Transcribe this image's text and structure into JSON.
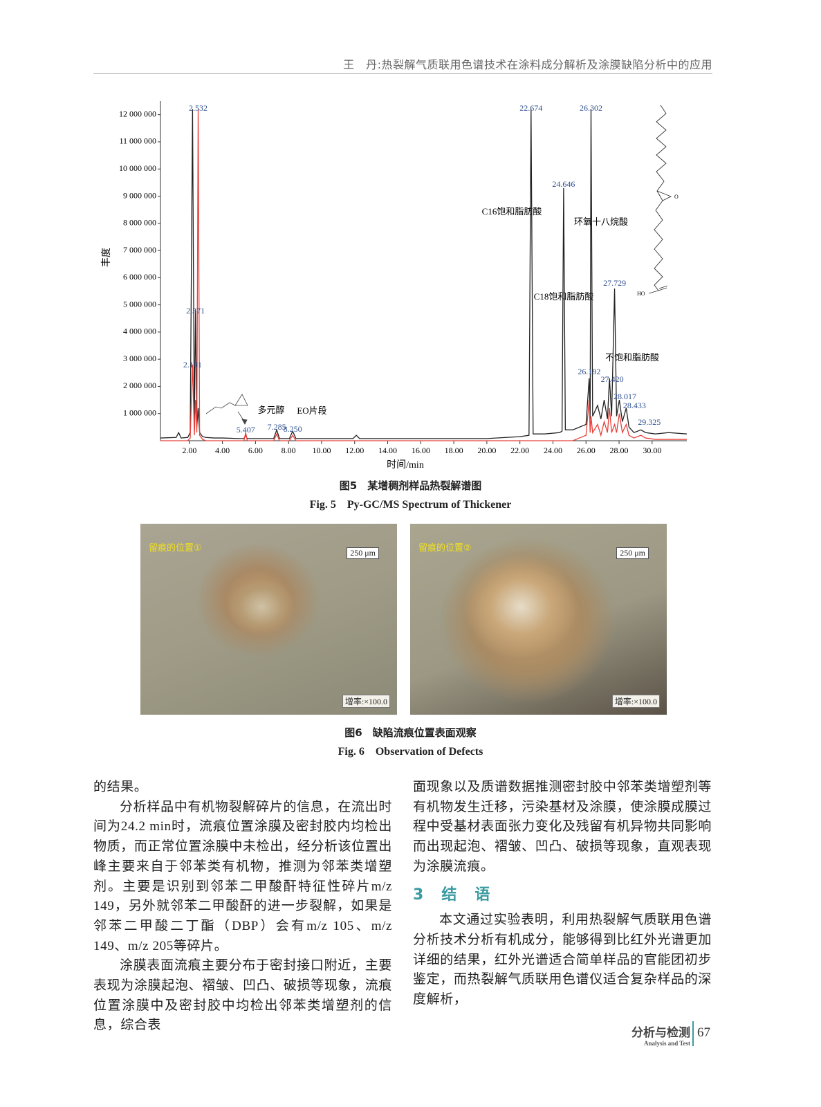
{
  "header": {
    "title": "王　丹:热裂解气质联用色谱技术在涂料成分解析及涂膜缺陷分析中的应用"
  },
  "chart_data": {
    "type": "line",
    "xlabel": "时间/min",
    "ylabel": "丰度",
    "xlim": [
      0.25,
      32.1
    ],
    "ylim": [
      0,
      12400000
    ],
    "xticks": [
      {
        "value": 2,
        "label": "2.00"
      },
      {
        "value": 4,
        "label": "4.00"
      },
      {
        "value": 6,
        "label": "6.00"
      },
      {
        "value": 8,
        "label": "8.00"
      },
      {
        "value": 10,
        "label": "10.00"
      },
      {
        "value": 12,
        "label": "12.00"
      },
      {
        "value": 14,
        "label": "14.00"
      },
      {
        "value": 16,
        "label": "16.00"
      },
      {
        "value": 18,
        "label": "18.00"
      },
      {
        "value": 20,
        "label": "20.00"
      },
      {
        "value": 22,
        "label": "22.00"
      },
      {
        "value": 24,
        "label": "24.00"
      },
      {
        "value": 26,
        "label": "26.00"
      },
      {
        "value": 28,
        "label": "28.00"
      },
      {
        "value": 30,
        "label": "30.00"
      }
    ],
    "yticks": [
      {
        "value": 1000000,
        "label": "1 000 000"
      },
      {
        "value": 2000000,
        "label": "2 000 000"
      },
      {
        "value": 3000000,
        "label": "3 000 000"
      },
      {
        "value": 4000000,
        "label": "4 000 000"
      },
      {
        "value": 5000000,
        "label": "5 000 000"
      },
      {
        "value": 6000000,
        "label": "6 000 000"
      },
      {
        "value": 7000000,
        "label": "7 000 000"
      },
      {
        "value": 8000000,
        "label": "8 000 000"
      },
      {
        "value": 9000000,
        "label": "9 000 000"
      },
      {
        "value": 10000000,
        "label": "10 000 000"
      },
      {
        "value": 11000000,
        "label": "11 000 000"
      },
      {
        "value": 12000000,
        "label": "12 000 000"
      }
    ],
    "x": [
      0.25,
      1.2,
      1.35,
      1.5,
      1.9,
      2.05,
      2.191,
      2.3,
      2.371,
      2.45,
      2.532,
      2.62,
      2.8,
      3.0,
      3.5,
      4.0,
      5.0,
      5.3,
      5.407,
      5.5,
      6.0,
      7.1,
      7.285,
      7.45,
      8.05,
      8.25,
      8.45,
      9.5,
      11.9,
      12.1,
      12.3,
      14,
      18,
      20,
      22,
      22.55,
      22.674,
      22.8,
      23.5,
      24.4,
      24.55,
      24.646,
      24.75,
      25.2,
      25.6,
      26.0,
      26.192,
      26.25,
      26.302,
      26.4,
      26.7,
      26.9,
      27.1,
      27.3,
      27.42,
      27.55,
      27.729,
      27.85,
      28.017,
      28.2,
      28.433,
      28.6,
      28.9,
      29.325,
      29.6,
      30.2,
      31,
      32.1
    ],
    "series": [
      {
        "color": "#222222",
        "values": [
          100000,
          120000,
          300000,
          100000,
          120000,
          300000,
          12200000,
          600000,
          4800000,
          500000,
          1200000,
          300000,
          150000,
          120000,
          100000,
          100000,
          80000,
          80000,
          200000,
          80000,
          80000,
          80000,
          400000,
          80000,
          80000,
          350000,
          80000,
          80000,
          80000,
          200000,
          80000,
          80000,
          80000,
          80000,
          150000,
          200000,
          12200000,
          250000,
          250000,
          300000,
          350000,
          9300000,
          400000,
          400000,
          500000,
          600000,
          2300000,
          800000,
          12200000,
          900000,
          1300000,
          800000,
          1500000,
          800000,
          2300000,
          900000,
          5600000,
          900000,
          1500000,
          700000,
          1200000,
          500000,
          300000,
          400000,
          300000,
          250000,
          300000,
          250000
        ]
      },
      {
        "color": "#e8403a",
        "values": [
          0,
          0,
          0,
          0,
          0,
          100000,
          2800000,
          200000,
          1500000,
          300000,
          12200000,
          200000,
          50000,
          0,
          0,
          0,
          0,
          0,
          300000,
          0,
          0,
          0,
          250000,
          0,
          0,
          200000,
          0,
          0,
          0,
          0,
          0,
          0,
          0,
          0,
          0,
          0,
          0,
          0,
          0,
          0,
          0,
          0,
          0,
          0,
          100000,
          200000,
          1500000,
          300000,
          900000,
          300000,
          600000,
          200000,
          700000,
          300000,
          1200000,
          300000,
          600000,
          300000,
          1000000,
          300000,
          600000,
          200000,
          100000,
          200000,
          100000,
          50000,
          50000,
          50000
        ]
      }
    ],
    "peak_labels": [
      2.532,
      2.371,
      2.191,
      5.407,
      7.285,
      {
        "value": 8.25,
        "label": "8.250"
      },
      22.674,
      24.646,
      26.302,
      27.729,
      26.192,
      {
        "value": 27.42,
        "label": "27.420"
      },
      28.017,
      28.433,
      29.325
    ],
    "annotations": [
      "C16饱和脂肪酸",
      "C18饱和脂肪酸",
      "环氧十八烷酸",
      "不饱和脂肪酸",
      "多元醇",
      "EO片段"
    ],
    "structure_labels": [
      "O",
      "HO"
    ]
  },
  "figure5": {
    "caption_cn": "图5　某增稠剂样品热裂解谱图",
    "caption_en": "Fig. 5　Py-GC/MS Spectrum of Thickener"
  },
  "figure6": {
    "panels": [
      {
        "label": "留痕的位置①",
        "scale": "250 μm",
        "magnification": "增率:×100.0"
      },
      {
        "label": "留痕的位置②",
        "scale": "250 μm",
        "magnification": "增率:×100.0"
      }
    ],
    "caption_cn": "图6　缺陷流痕位置表面观察",
    "caption_en": "Fig. 6　Observation of Defects"
  },
  "body": {
    "left": [
      "的结果。",
      "分析样品中有机物裂解碎片的信息，在流出时间为24.2 min时，流痕位置涂膜及密封胶内均检出物质，而正常位置涂膜中未检出，经分析该位置出峰主要来自于邻苯类有机物，推测为邻苯类增塑剂。主要是识别到邻苯二甲酸酐特征性碎片m/z 149，另外就邻苯二甲酸酐的进一步裂解，如果是邻苯二甲酸二丁酯（DBP）会有m/z 105、m/z 149、m/z 205等碎片。",
      "涂膜表面流痕主要分布于密封接口附近，主要表现为涂膜起泡、褶皱、凹凸、破损等现象，流痕位置涂膜中及密封胶中均检出邻苯类增塑剂的信息，综合表"
    ],
    "right_top": "面现象以及质谱数据推测密封胶中邻苯类增塑剂等有机物发生迁移，污染基材及涂膜，使涂膜成膜过程中受基材表面张力变化及残留有机异物共同影响而出现起泡、褶皱、凹凸、破损等现象，直观表现为涂膜流痕。",
    "section": {
      "number": "3",
      "title": "结　语"
    },
    "right_bottom": "本文通过实验表明，利用热裂解气质联用色谱分析技术分析有机成分，能够得到比红外光谱更加详细的结果，红外光谱适合简单样品的官能团初步鉴定，而热裂解气质联用色谱仪适合复杂样品的深度解析，"
  },
  "footer": {
    "journal_cn": "分析与检测",
    "journal_en": "Analysis and Test",
    "page": "67"
  }
}
